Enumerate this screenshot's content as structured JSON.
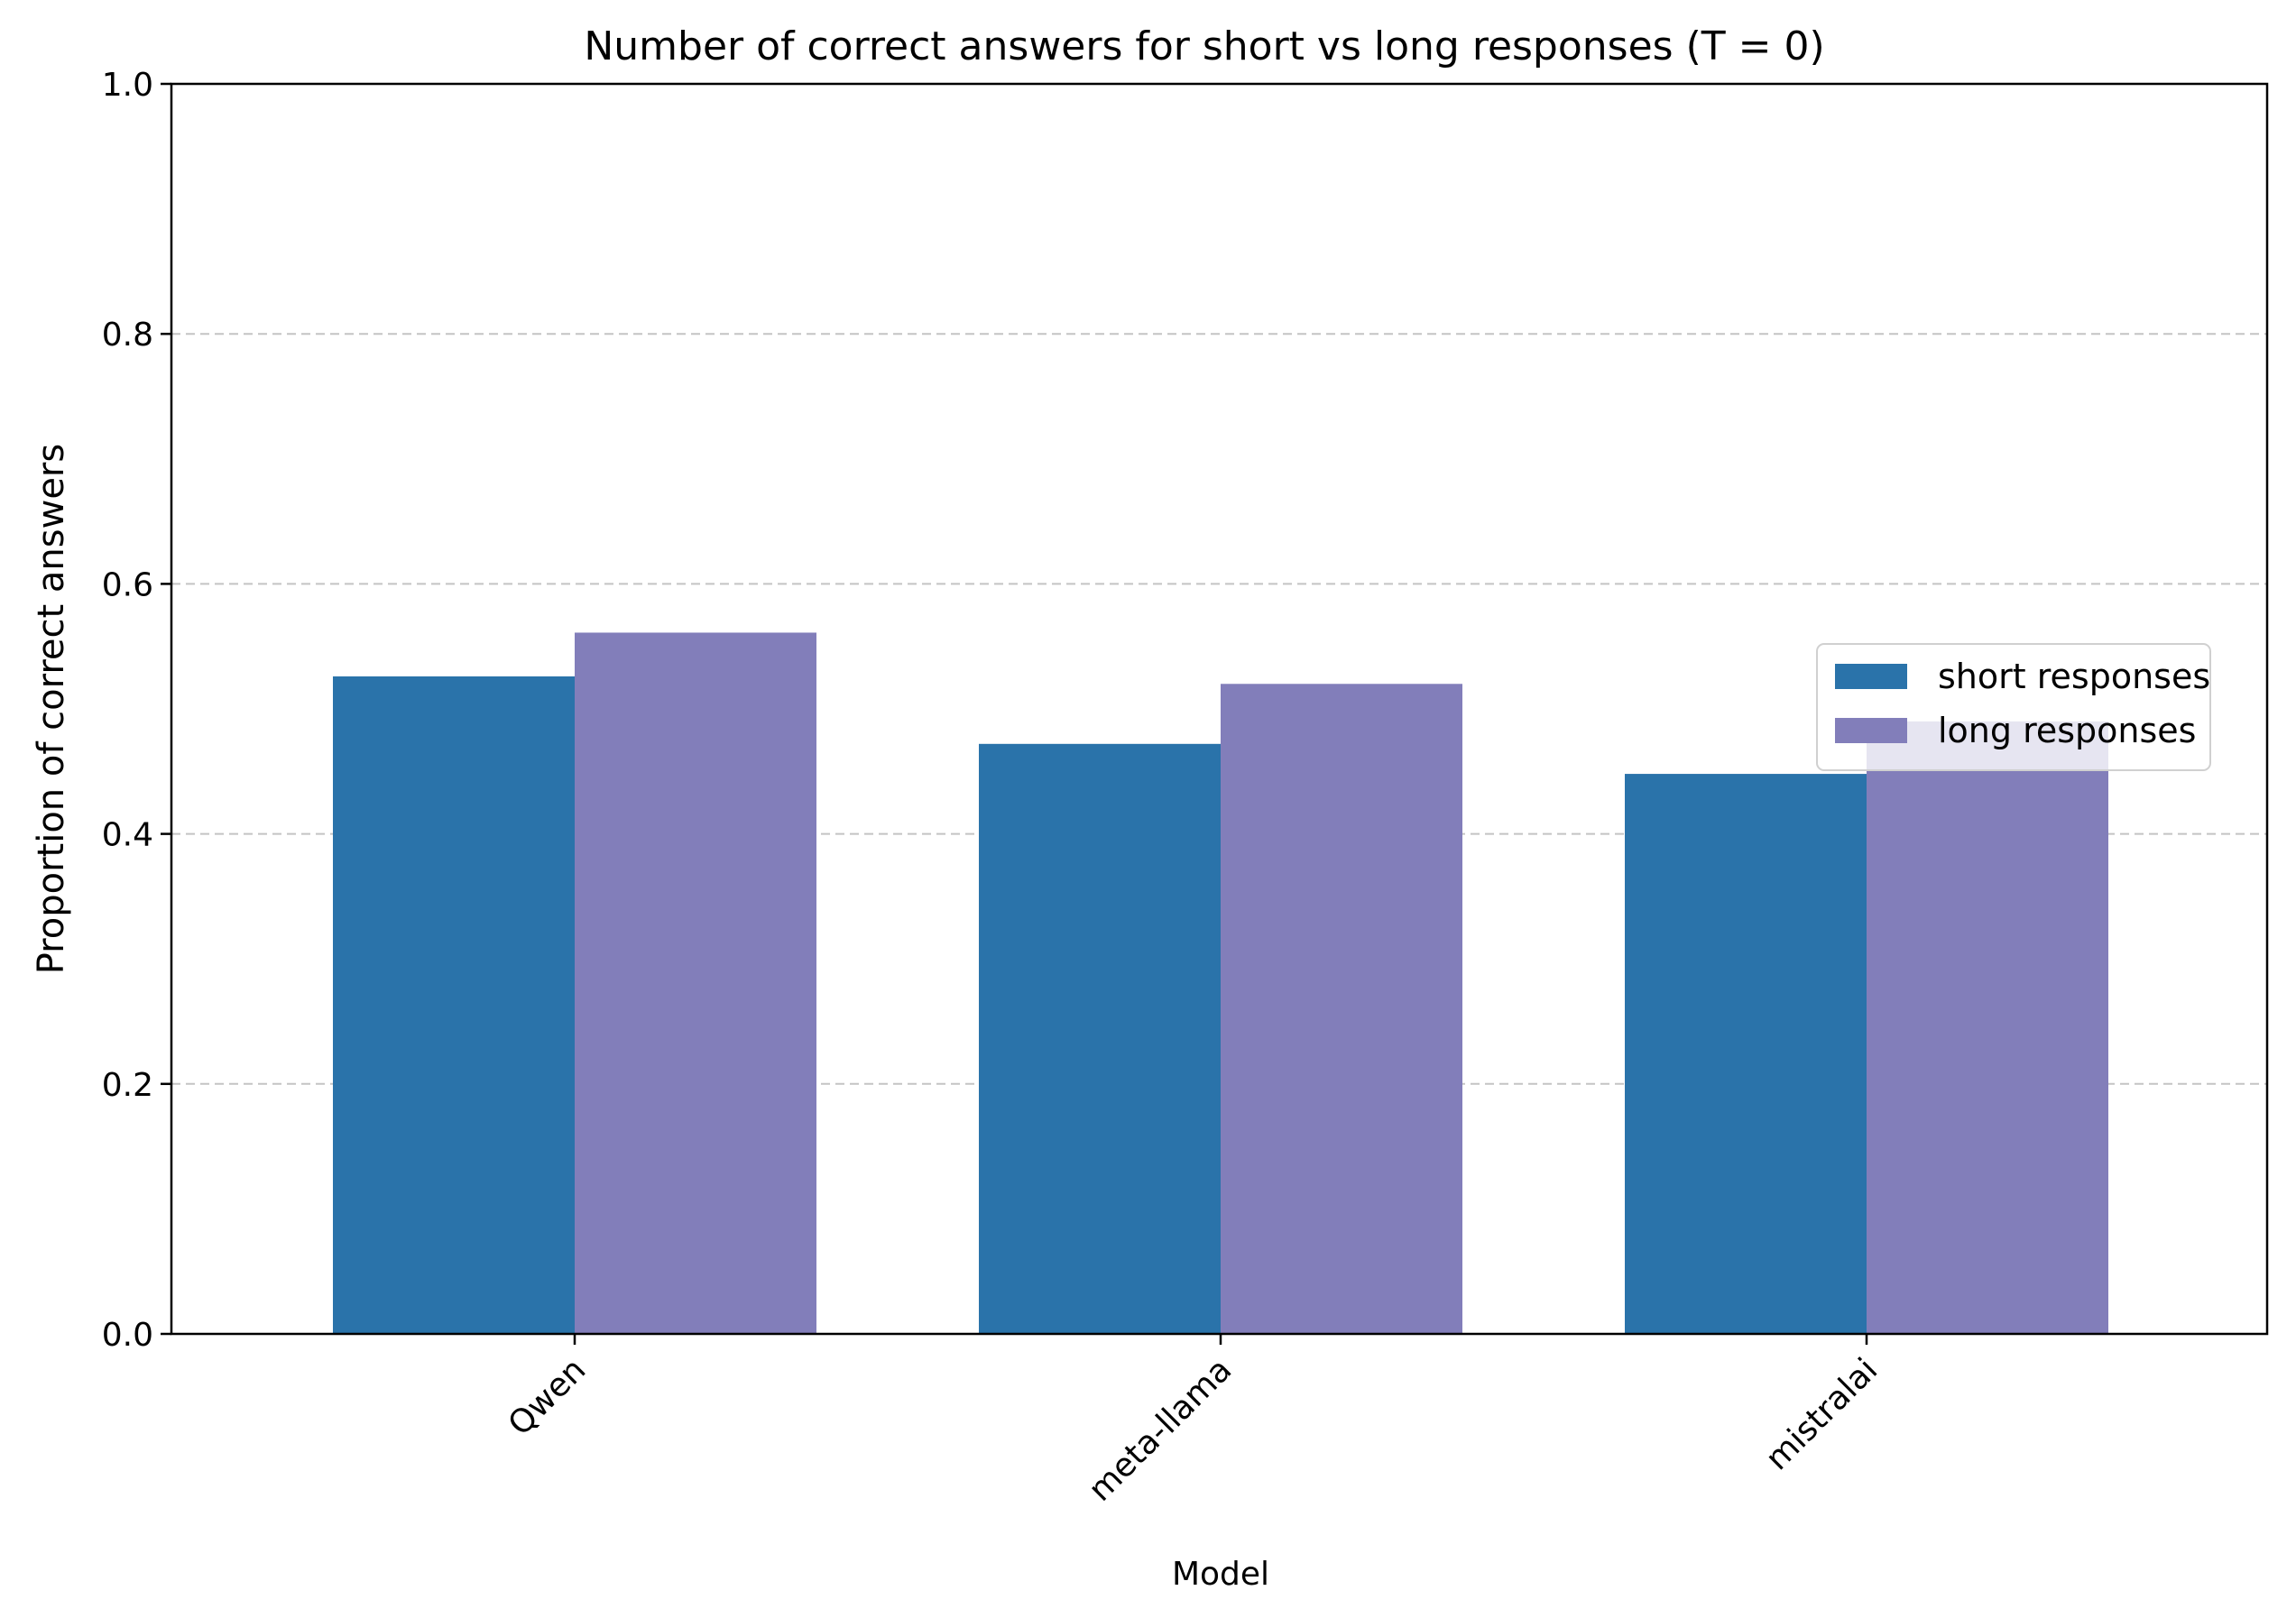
{
  "chart_data": {
    "type": "bar",
    "title": "Number of correct answers for short vs long responses (T = 0)",
    "xlabel": "Model",
    "ylabel": "Proportion of correct answers",
    "categories": [
      "Qwen",
      "meta-llama",
      "mistralai"
    ],
    "series": [
      {
        "name": "short responses",
        "values": [
          0.526,
          0.472,
          0.448
        ],
        "color": "#2a73aa"
      },
      {
        "name": "long responses",
        "values": [
          0.561,
          0.52,
          0.49
        ],
        "color": "#827eba"
      }
    ],
    "ylim": [
      0,
      1.0
    ],
    "yticks": [
      "0.0",
      "0.2",
      "0.4",
      "0.6",
      "0.8",
      "1.0"
    ],
    "grid": "y-dashed",
    "legend_position": "right"
  }
}
